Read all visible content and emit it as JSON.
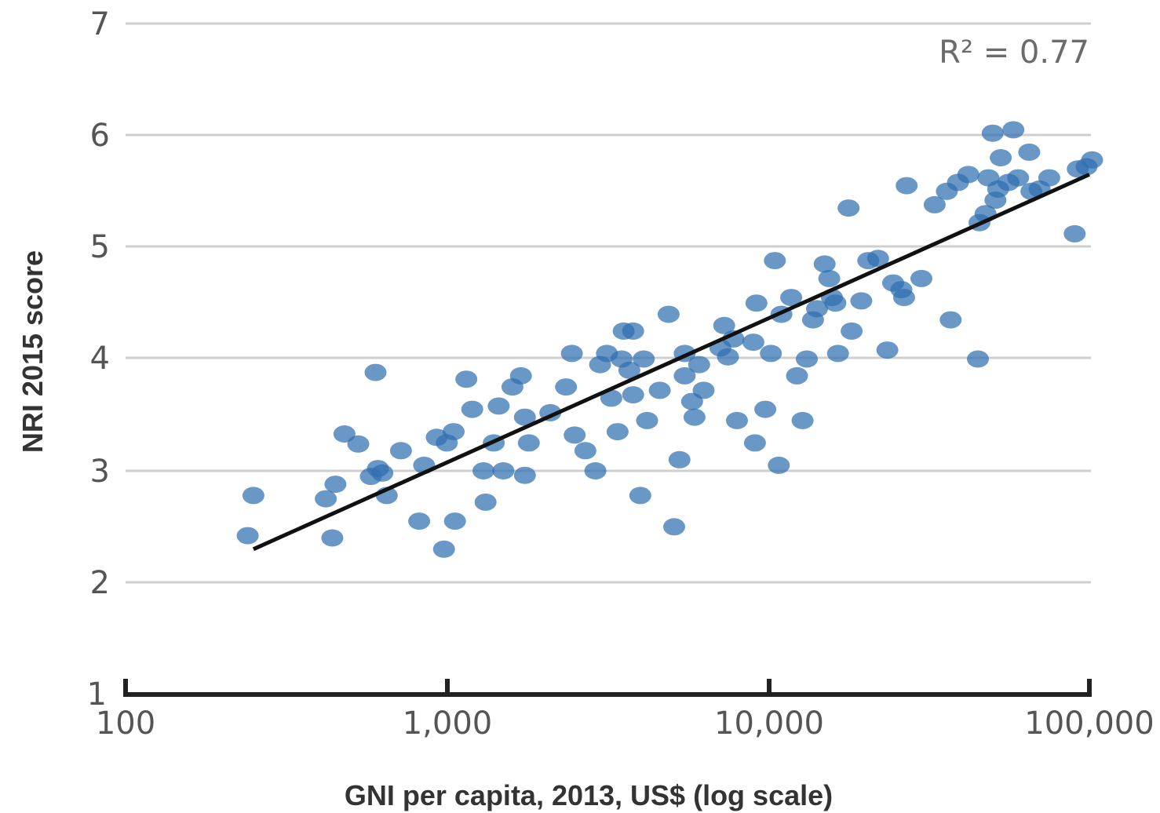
{
  "chart_data": {
    "type": "scatter",
    "title": "",
    "xlabel": "GNI per capita, 2013, US$ (log scale)",
    "ylabel": "NRI 2015  score",
    "x_scale": "log",
    "xlim": [
      100,
      100000
    ],
    "ylim": [
      1,
      7
    ],
    "x_ticks": [
      "100",
      "1,000",
      "10,000",
      "100,000"
    ],
    "y_ticks": [
      "1",
      "2",
      "3",
      "4",
      "5",
      "6",
      "7"
    ],
    "grid": true,
    "annotation": "R² = 0.77",
    "trendline": {
      "x": [
        250,
        100000
      ],
      "y": [
        2.3,
        5.65
      ]
    },
    "colors": {
      "points": "#2f6fb0",
      "trendline": "#111111",
      "grid": "#cfcfcf"
    },
    "series": [
      {
        "points": [
          [
            240,
            2.42
          ],
          [
            250,
            2.78
          ],
          [
            420,
            2.75
          ],
          [
            440,
            2.4
          ],
          [
            450,
            2.88
          ],
          [
            480,
            3.33
          ],
          [
            530,
            3.24
          ],
          [
            580,
            2.95
          ],
          [
            600,
            3.88
          ],
          [
            610,
            3.02
          ],
          [
            630,
            2.98
          ],
          [
            650,
            2.78
          ],
          [
            720,
            3.18
          ],
          [
            820,
            2.55
          ],
          [
            850,
            3.05
          ],
          [
            930,
            3.3
          ],
          [
            980,
            2.3
          ],
          [
            1000,
            3.25
          ],
          [
            1050,
            3.35
          ],
          [
            1060,
            2.55
          ],
          [
            1150,
            3.82
          ],
          [
            1200,
            3.55
          ],
          [
            1300,
            3.0
          ],
          [
            1320,
            2.72
          ],
          [
            1400,
            3.25
          ],
          [
            1450,
            3.58
          ],
          [
            1500,
            3.0
          ],
          [
            1600,
            3.75
          ],
          [
            1700,
            3.85
          ],
          [
            1750,
            3.48
          ],
          [
            1750,
            2.96
          ],
          [
            1800,
            3.25
          ],
          [
            2100,
            3.52
          ],
          [
            2350,
            3.75
          ],
          [
            2450,
            4.05
          ],
          [
            2500,
            3.32
          ],
          [
            2700,
            3.18
          ],
          [
            2900,
            3.0
          ],
          [
            3000,
            3.95
          ],
          [
            3150,
            4.05
          ],
          [
            3250,
            3.65
          ],
          [
            3400,
            3.35
          ],
          [
            3500,
            4.0
          ],
          [
            3550,
            4.25
          ],
          [
            3700,
            3.9
          ],
          [
            3800,
            4.25
          ],
          [
            3800,
            3.68
          ],
          [
            4000,
            2.78
          ],
          [
            4100,
            4.0
          ],
          [
            4200,
            3.45
          ],
          [
            4600,
            3.72
          ],
          [
            4900,
            4.4
          ],
          [
            5100,
            2.5
          ],
          [
            5300,
            3.1
          ],
          [
            5500,
            4.05
          ],
          [
            5500,
            3.85
          ],
          [
            5800,
            3.62
          ],
          [
            5900,
            3.48
          ],
          [
            6100,
            3.95
          ],
          [
            6300,
            3.72
          ],
          [
            7100,
            4.1
          ],
          [
            7300,
            4.3
          ],
          [
            7500,
            4.02
          ],
          [
            7800,
            4.18
          ],
          [
            8000,
            3.45
          ],
          [
            9000,
            4.15
          ],
          [
            9100,
            3.25
          ],
          [
            9200,
            4.5
          ],
          [
            9800,
            3.55
          ],
          [
            10200,
            4.05
          ],
          [
            10500,
            4.88
          ],
          [
            10800,
            3.05
          ],
          [
            11000,
            4.4
          ],
          [
            11800,
            4.55
          ],
          [
            12300,
            3.85
          ],
          [
            12800,
            3.45
          ],
          [
            13200,
            4.0
          ],
          [
            13800,
            4.35
          ],
          [
            14200,
            4.45
          ],
          [
            15000,
            4.85
          ],
          [
            15500,
            4.72
          ],
          [
            15800,
            4.55
          ],
          [
            16200,
            4.5
          ],
          [
            16500,
            4.05
          ],
          [
            17800,
            5.35
          ],
          [
            18200,
            4.25
          ],
          [
            19500,
            4.52
          ],
          [
            20500,
            4.88
          ],
          [
            22000,
            4.9
          ],
          [
            23500,
            4.08
          ],
          [
            24500,
            4.68
          ],
          [
            26000,
            4.62
          ],
          [
            26500,
            4.55
          ],
          [
            27000,
            5.55
          ],
          [
            30000,
            4.72
          ],
          [
            33000,
            5.38
          ],
          [
            36000,
            5.5
          ],
          [
            37000,
            4.35
          ],
          [
            39000,
            5.58
          ],
          [
            42000,
            5.65
          ],
          [
            45000,
            4.0
          ],
          [
            45500,
            5.22
          ],
          [
            47500,
            5.3
          ],
          [
            48500,
            5.62
          ],
          [
            50000,
            6.02
          ],
          [
            51000,
            5.42
          ],
          [
            52000,
            5.52
          ],
          [
            53000,
            5.8
          ],
          [
            56000,
            5.58
          ],
          [
            58000,
            6.05
          ],
          [
            60000,
            5.62
          ],
          [
            65000,
            5.85
          ],
          [
            66000,
            5.5
          ],
          [
            70000,
            5.52
          ],
          [
            75000,
            5.62
          ],
          [
            90000,
            5.12
          ],
          [
            92000,
            5.7
          ],
          [
            98000,
            5.72
          ],
          [
            102000,
            5.78
          ]
        ]
      }
    ]
  }
}
